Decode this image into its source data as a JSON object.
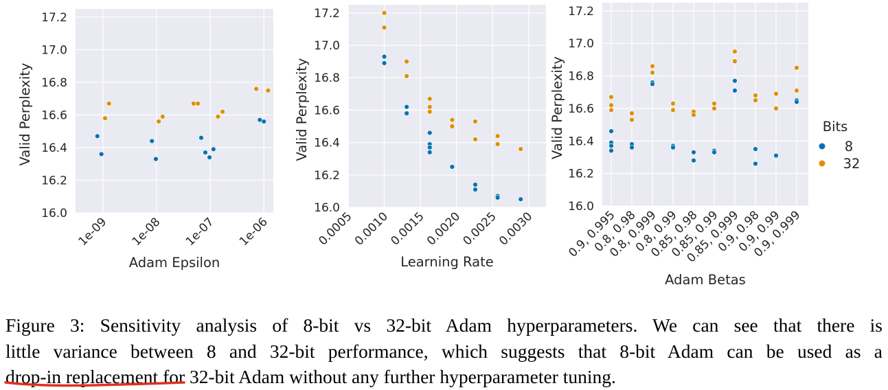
{
  "colors": {
    "bits_8": "#0173b2",
    "bits_32": "#de8f05",
    "plot_bg": "#eaeaf2",
    "grid": "#ffffff",
    "underline": "#e0301e"
  },
  "legend": {
    "title": "Bits",
    "entries": [
      "8",
      "32"
    ],
    "placement": "right"
  },
  "caption": {
    "line1": "Figure 3: Sensitivity analysis of 8-bit vs 32-bit Adam hyperparameters. We can see that there is",
    "line2": "little variance between 8 and 32-bit performance, which suggests that 8-bit Adam can be used as a",
    "line3_highlight": "drop-in replacement",
    "line3_rest": " for 32-bit Adam without any further hyperparameter tuning."
  },
  "chart_data": [
    {
      "type": "scatter",
      "xlabel": "Adam Epsilon",
      "ylabel": "Valid Perplexity",
      "xscale": "log",
      "xlim": [
        3.1e-10,
        1.5e-06
      ],
      "ylim": [
        16.0,
        17.25
      ],
      "grid": true,
      "xticks": [
        {
          "value": 1e-09,
          "label": "1e-09"
        },
        {
          "value": 1e-08,
          "label": "1e-08"
        },
        {
          "value": 1e-07,
          "label": "1e-07"
        },
        {
          "value": 1e-06,
          "label": "1e-06"
        }
      ],
      "yticks": [
        "16.0",
        "16.2",
        "16.4",
        "16.6",
        "16.8",
        "17.0",
        "17.2"
      ],
      "series": [
        {
          "name": "8",
          "points": [
            [
              7.9e-10,
              16.47
            ],
            [
              9.4e-10,
              16.36
            ],
            [
              8.2e-09,
              16.44
            ],
            [
              9.7e-09,
              16.33
            ],
            [
              6.8e-08,
              16.46
            ],
            [
              8.1e-08,
              16.37
            ],
            [
              9.7e-08,
              16.34
            ],
            [
              1.15e-07,
              16.39
            ],
            [
              8.4e-07,
              16.57
            ],
            [
              1e-06,
              16.56
            ]
          ]
        },
        {
          "name": "32",
          "points": [
            [
              1.1e-09,
              16.58
            ],
            [
              1.3e-09,
              16.67
            ],
            [
              1.1e-08,
              16.56
            ],
            [
              1.3e-08,
              16.59
            ],
            [
              4.9e-08,
              16.67
            ],
            [
              5.9e-08,
              16.67
            ],
            [
              1.4e-07,
              16.59
            ],
            [
              1.7e-07,
              16.62
            ],
            [
              7.2e-07,
              16.76
            ],
            [
              1.2e-06,
              16.75
            ]
          ]
        }
      ]
    },
    {
      "type": "scatter",
      "xlabel": "Learning Rate",
      "ylabel": "Valid Perplexity",
      "xlim": [
        0.0005,
        0.00324
      ],
      "ylim": [
        16.0,
        17.25
      ],
      "grid": true,
      "xticks": [
        {
          "value": 0.0005,
          "label": "0.0005"
        },
        {
          "value": 0.001,
          "label": "0.0010"
        },
        {
          "value": 0.0015,
          "label": "0.0015"
        },
        {
          "value": 0.002,
          "label": "0.0020"
        },
        {
          "value": 0.0025,
          "label": "0.0025"
        },
        {
          "value": 0.003,
          "label": "0.0030"
        }
      ],
      "yticks": [
        "16.0",
        "16.2",
        "16.4",
        "16.6",
        "16.8",
        "17.0",
        "17.2"
      ],
      "series": [
        {
          "name": "8",
          "points": [
            [
              0.001,
              16.93
            ],
            [
              0.001,
              16.89
            ],
            [
              0.00131,
              16.62
            ],
            [
              0.00131,
              16.58
            ],
            [
              0.00163,
              16.46
            ],
            [
              0.00163,
              16.39
            ],
            [
              0.00163,
              16.37
            ],
            [
              0.00163,
              16.34
            ],
            [
              0.00194,
              16.25
            ],
            [
              0.00226,
              16.14
            ],
            [
              0.00226,
              16.11
            ],
            [
              0.00257,
              16.07
            ],
            [
              0.00257,
              16.06
            ],
            [
              0.00289,
              16.05
            ]
          ]
        },
        {
          "name": "32",
          "points": [
            [
              0.001,
              17.2
            ],
            [
              0.001,
              17.11
            ],
            [
              0.00131,
              16.9
            ],
            [
              0.00131,
              16.81
            ],
            [
              0.00163,
              16.67
            ],
            [
              0.00163,
              16.62
            ],
            [
              0.00163,
              16.59
            ],
            [
              0.00194,
              16.54
            ],
            [
              0.00194,
              16.5
            ],
            [
              0.00226,
              16.53
            ],
            [
              0.00226,
              16.42
            ],
            [
              0.00257,
              16.44
            ],
            [
              0.00257,
              16.39
            ],
            [
              0.00289,
              16.36
            ]
          ]
        }
      ]
    },
    {
      "type": "scatter",
      "xlabel": "Adam Betas",
      "ylabel": "Valid Perplexity",
      "ylim": [
        16.0,
        17.25
      ],
      "grid": true,
      "categories": [
        "0.9, 0.995",
        "0.8, 0.98",
        "0.8, 0.999",
        "0.8, 0.99",
        "0.85, 0.98",
        "0.85, 0.99",
        "0.85, 0.999",
        "0.9, 0.98",
        "0.9, 0.99",
        "0.9, 0.999"
      ],
      "yticks": [
        "16.0",
        "16.2",
        "16.4",
        "16.6",
        "16.8",
        "17.0",
        "17.2"
      ],
      "series": [
        {
          "name": "8",
          "points": [
            [
              0,
              16.46
            ],
            [
              0,
              16.39
            ],
            [
              0,
              16.37
            ],
            [
              0,
              16.34
            ],
            [
              1,
              16.38
            ],
            [
              1,
              16.36
            ],
            [
              2,
              16.76
            ],
            [
              2,
              16.75
            ],
            [
              3,
              16.37
            ],
            [
              3,
              16.36
            ],
            [
              4,
              16.33
            ],
            [
              4,
              16.28
            ],
            [
              5,
              16.34
            ],
            [
              5,
              16.33
            ],
            [
              6,
              16.77
            ],
            [
              6,
              16.71
            ],
            [
              7,
              16.35
            ],
            [
              7,
              16.26
            ],
            [
              8,
              16.31
            ],
            [
              9,
              16.65
            ],
            [
              9,
              16.64
            ]
          ]
        },
        {
          "name": "32",
          "points": [
            [
              0,
              16.67
            ],
            [
              0,
              16.62
            ],
            [
              0,
              16.59
            ],
            [
              1,
              16.57
            ],
            [
              1,
              16.53
            ],
            [
              2,
              16.86
            ],
            [
              2,
              16.82
            ],
            [
              3,
              16.63
            ],
            [
              3,
              16.59
            ],
            [
              4,
              16.58
            ],
            [
              4,
              16.56
            ],
            [
              5,
              16.63
            ],
            [
              5,
              16.6
            ],
            [
              6,
              16.95
            ],
            [
              6,
              16.89
            ],
            [
              7,
              16.68
            ],
            [
              7,
              16.65
            ],
            [
              8,
              16.69
            ],
            [
              8,
              16.6
            ],
            [
              9,
              16.85
            ],
            [
              9,
              16.71
            ]
          ]
        }
      ]
    }
  ]
}
